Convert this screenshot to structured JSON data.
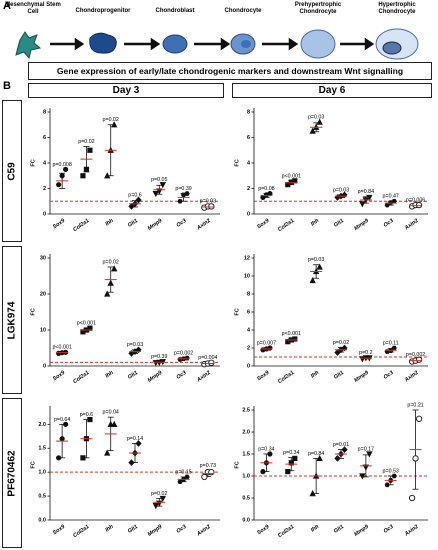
{
  "panel_a": {
    "label": "A",
    "cells": [
      "Mesenchymal Stem Cell",
      "Chondroprogenitor",
      "Chondroblast",
      "Chondrocyte",
      "Prehypertrophic Chondrocyte",
      "Hypertrophic Chondrocyte"
    ]
  },
  "title": "Gene expression of early/late chondrogenic markers and downstream Wnt signalling",
  "panel_b": {
    "label": "B",
    "days": [
      "Day 3",
      "Day 6"
    ],
    "rows": [
      "C59",
      "LGK974",
      "PF670462"
    ]
  },
  "markers": [
    "circle",
    "square",
    "triangle",
    "diamond",
    "triangle-down",
    "hexagon",
    "open-circle"
  ],
  "chart_data": [
    {
      "type": "scatter",
      "ylabel": "FC",
      "categories": [
        "Sox9",
        "Col2a1",
        "Ihh",
        "Gli1",
        "Mmp9",
        "Oc3",
        "Axin2"
      ],
      "points": [
        [
          2.3,
          3,
          3.5
        ],
        [
          3,
          3.5,
          5
        ],
        [
          3,
          5,
          7
        ],
        [
          0.6,
          0.8,
          1.1
        ],
        [
          1.6,
          1.8,
          2.3
        ],
        [
          1.0,
          1.5,
          1.6
        ],
        [
          0.5,
          0.6,
          0.6
        ]
      ],
      "means": [
        2.6,
        4.3,
        5,
        0.8,
        1.9,
        1.3,
        0.55
      ],
      "errors": [
        0.6,
        1,
        2,
        0.25,
        0.35,
        0.3,
        0.06
      ],
      "annotations": [
        "p=0.008",
        "p=0.02",
        "p=0.02",
        "p=0.6",
        "p=0.05",
        "p=0.39",
        "p=0.03"
      ],
      "ylim": [
        0,
        8
      ],
      "yticks": [
        0,
        2,
        4,
        6,
        8
      ],
      "reference_line": 1,
      "reference_color": "#d0312d",
      "mean_color": "#d0312d",
      "color": "#111111"
    },
    {
      "type": "scatter",
      "ylabel": "FC",
      "categories": [
        "Sox9",
        "Col2a1",
        "Ihh",
        "Gli1",
        "Mmp9",
        "Oc3",
        "Axin2"
      ],
      "points": [
        [
          1.3,
          1.5,
          1.6
        ],
        [
          2.3,
          2.5,
          2.6
        ],
        [
          6.5,
          6.8,
          7.2
        ],
        [
          1.3,
          1.4,
          1.5
        ],
        [
          0.8,
          1.1,
          1.3
        ],
        [
          0.7,
          0.9,
          1.0
        ],
        [
          0.6,
          0.7,
          0.7
        ]
      ],
      "means": [
        1.45,
        2.45,
        6.8,
        1.4,
        1.1,
        0.85,
        0.65
      ],
      "errors": [
        0.15,
        0.15,
        0.35,
        0.1,
        0.25,
        0.15,
        0.06
      ],
      "annotations": [
        "p=0.08",
        "p<0.001",
        "p=0.03",
        "p=0.03",
        "p=0.84",
        "p=0.47",
        "p=0.006"
      ],
      "ylim": [
        0,
        8
      ],
      "yticks": [
        0,
        2,
        4,
        6,
        8
      ],
      "reference_line": 1,
      "reference_color": "#d0312d",
      "mean_color": "#d0312d",
      "color": "#111111"
    },
    {
      "type": "scatter",
      "ylabel": "FC",
      "categories": [
        "Sox9",
        "Col2a1",
        "Ihh",
        "Gli1",
        "Mmp9",
        "Oc3",
        "Axin2"
      ],
      "points": [
        [
          3.5,
          3.7,
          3.8
        ],
        [
          9.5,
          10,
          10.5
        ],
        [
          20,
          23,
          27
        ],
        [
          3.5,
          4,
          4.5
        ],
        [
          0.9,
          1,
          1.2
        ],
        [
          1.8,
          2,
          2.2
        ],
        [
          0.5,
          0.7,
          0.9
        ]
      ],
      "means": [
        3.7,
        10,
        24,
        4,
        1.05,
        2,
        0.7
      ],
      "errors": [
        0.15,
        0.5,
        3.5,
        0.5,
        0.15,
        0.2,
        0.2
      ],
      "annotations": [
        "p<0.001",
        "p<0.001",
        "p=0.02",
        "p=0.03",
        "p=0.39",
        "p=0.002",
        "p=0.004"
      ],
      "ylim": [
        0,
        30
      ],
      "yticks": [
        0,
        10,
        20,
        30
      ],
      "reference_line": 1,
      "reference_color": "#d0312d",
      "mean_color": "#d0312d",
      "color": "#111111"
    },
    {
      "type": "scatter",
      "ylabel": "FC",
      "categories": [
        "Sox9",
        "Col2a1",
        "Ihh",
        "Gli1",
        "Mmp9",
        "Oc3",
        "Axin2"
      ],
      "points": [
        [
          1.8,
          1.9,
          2.0
        ],
        [
          2.7,
          2.9,
          3.0
        ],
        [
          9.5,
          10.5,
          11
        ],
        [
          1.5,
          1.8,
          2
        ],
        [
          0.8,
          0.9,
          0.9
        ],
        [
          1.6,
          1.7,
          2
        ],
        [
          0.5,
          0.6,
          0.7
        ]
      ],
      "means": [
        1.9,
        2.9,
        10.5,
        1.8,
        0.87,
        1.75,
        0.6
      ],
      "errors": [
        0.1,
        0.15,
        0.75,
        0.25,
        0.06,
        0.2,
        0.1
      ],
      "annotations": [
        "p=0.007",
        "p<0.001",
        "p=0.03",
        "p=0.02",
        "p=0.2",
        "p=0.11",
        "p=0.002"
      ],
      "ylim": [
        0,
        12
      ],
      "yticks": [
        0,
        2,
        4,
        6,
        8,
        10,
        12
      ],
      "reference_line": 1,
      "reference_color": "#d0312d",
      "mean_color": "#d0312d",
      "color": "#111111"
    },
    {
      "type": "scatter",
      "ylabel": "FC",
      "categories": [
        "Sox9",
        "Col2a1",
        "Ihh",
        "Gli1",
        "Mmp9",
        "Oc3",
        "Axin2"
      ],
      "points": [
        [
          1.3,
          1.7,
          2.0
        ],
        [
          1.3,
          1.7,
          2.1
        ],
        [
          1.4,
          2,
          2
        ],
        [
          1.2,
          1.4,
          1.6
        ],
        [
          0.3,
          0.35,
          0.45
        ],
        [
          0.8,
          0.85,
          0.9
        ],
        [
          0.9,
          1.0,
          1.0
        ]
      ],
      "means": [
        1.65,
        1.7,
        1.8,
        1.4,
        0.37,
        0.85,
        0.97
      ],
      "errors": [
        0.35,
        0.4,
        0.35,
        0.2,
        0.08,
        0.05,
        0.06
      ],
      "annotations": [
        "p=0.64",
        "p=0.6",
        "p=0.04",
        "p=0.14",
        "p=0.02",
        "p=0.15",
        "p=0.73"
      ],
      "ylim": [
        0,
        2.3
      ],
      "yticks": [
        {
          "value": 0,
          "label": "0.0"
        },
        0.5,
        {
          "value": 1,
          "label": "1.0"
        },
        1.5,
        {
          "value": 2,
          "label": "2.0"
        }
      ],
      "reference_line": 1,
      "reference_color": "#d0312d",
      "mean_color": "#d0312d",
      "color": "#111111"
    },
    {
      "type": "scatter",
      "ylabel": "FC",
      "categories": [
        "Sox9",
        "Col2a1",
        "Ihh",
        "Gli1",
        "Mmp9",
        "Oc3",
        "Axin2"
      ],
      "points": [
        [
          1.1,
          1.3,
          1.5
        ],
        [
          1.1,
          1.3,
          1.4
        ],
        [
          0.6,
          1,
          1.4
        ],
        [
          1.4,
          1.5,
          1.6
        ],
        [
          1.0,
          1.2,
          1.5
        ],
        [
          0.8,
          0.9,
          1.0
        ],
        [
          0.5,
          1.4,
          2.3
        ]
      ],
      "means": [
        1.3,
        1.27,
        1.0,
        1.5,
        1.23,
        0.9,
        1.6
      ],
      "errors": [
        0.2,
        0.15,
        0.4,
        0.1,
        0.25,
        0.1,
        0.9
      ],
      "annotations": [
        "p=0.34",
        "p=0.34",
        "p=0.84",
        "p=0.01",
        "p=0.17",
        "p=0.53",
        "p=0.21"
      ],
      "ylim": [
        0,
        2.5
      ],
      "yticks": [
        {
          "value": 0,
          "label": "0.0"
        },
        0.5,
        {
          "value": 1,
          "label": "1.0"
        },
        1.5,
        {
          "value": 2,
          "label": "2.0"
        },
        2.5
      ],
      "reference_line": 1,
      "reference_color": "#d0312d",
      "mean_color": "#d0312d",
      "color": "#111111"
    }
  ]
}
